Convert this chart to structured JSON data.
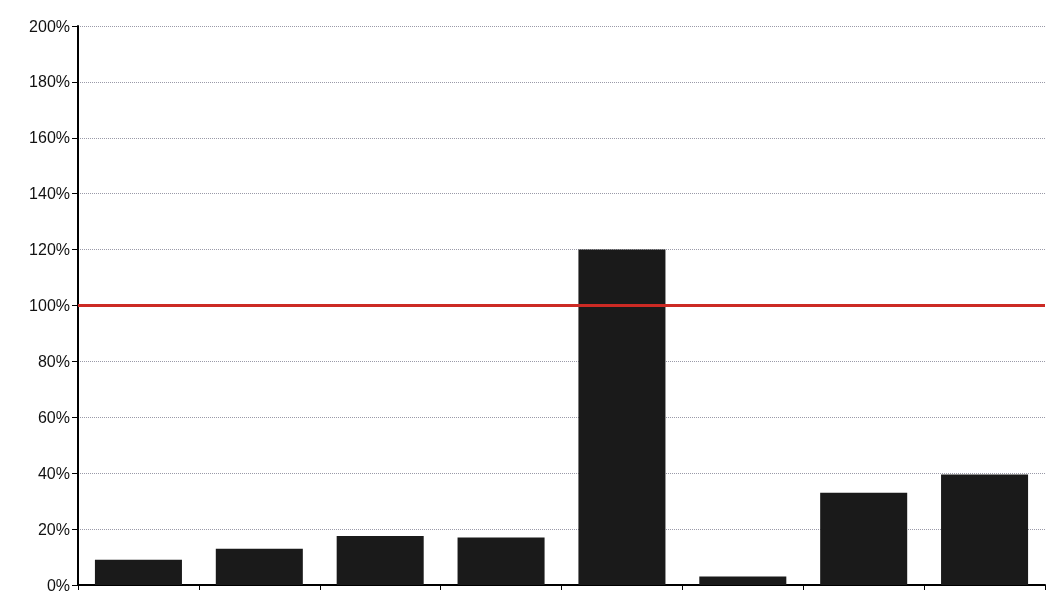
{
  "chart_data": {
    "type": "bar",
    "categories": [
      null,
      null,
      null,
      null,
      null,
      null,
      null,
      null
    ],
    "values": [
      9,
      13,
      17.5,
      17,
      120,
      3,
      33,
      39.5
    ],
    "color": "#1a1a1a",
    "ylim": [
      0,
      200
    ],
    "yticks": [
      {
        "value": 0,
        "label": "0%"
      },
      {
        "value": 20,
        "label": "20%"
      },
      {
        "value": 40,
        "label": "40%"
      },
      {
        "value": 60,
        "label": "60%"
      },
      {
        "value": 80,
        "label": "80%"
      },
      {
        "value": 100,
        "label": "100%"
      },
      {
        "value": 120,
        "label": "120%"
      },
      {
        "value": 140,
        "label": "140%"
      },
      {
        "value": 160,
        "label": "160%"
      },
      {
        "value": 180,
        "label": "180%"
      },
      {
        "value": 200,
        "label": "200%"
      }
    ],
    "grid": "y",
    "ref_lines": [
      {
        "axis": "y",
        "value": 100,
        "color": "#cc2a24",
        "line_style": "solid"
      }
    ]
  }
}
